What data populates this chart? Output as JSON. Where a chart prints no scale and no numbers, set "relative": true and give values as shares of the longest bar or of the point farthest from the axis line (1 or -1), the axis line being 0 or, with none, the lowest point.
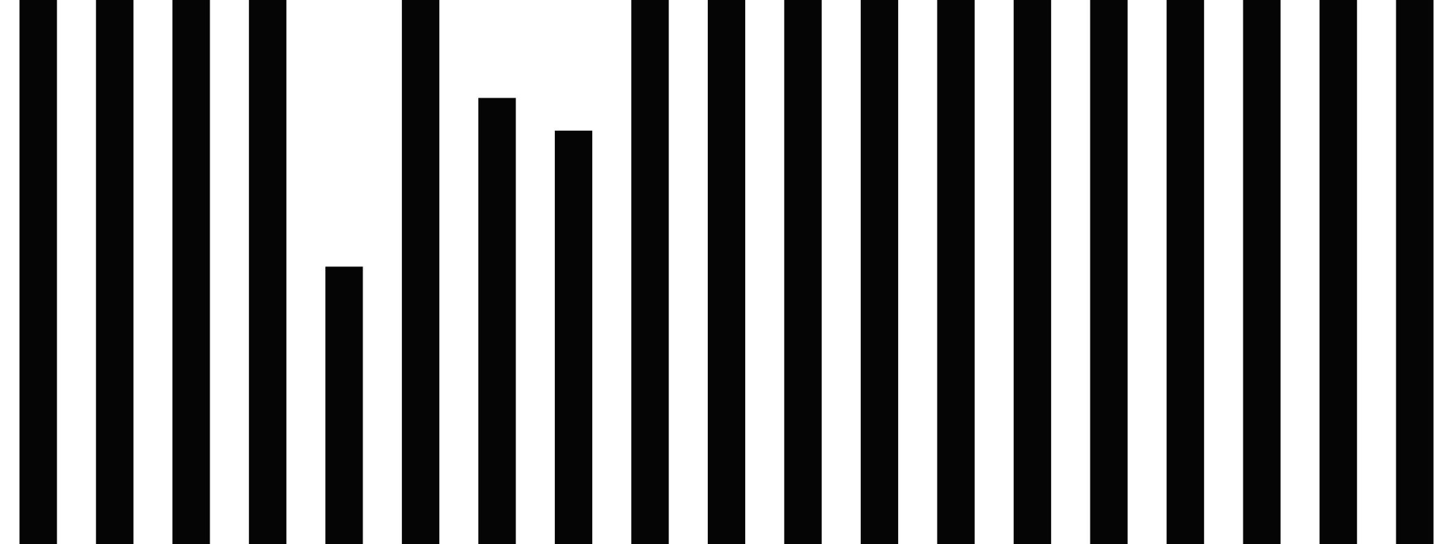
{
  "chart_data": {
    "type": "bar",
    "relative": true,
    "categories": [
      null,
      null,
      null,
      null,
      null,
      null,
      null,
      null,
      null,
      null,
      null,
      null,
      null,
      null,
      null,
      null,
      null,
      null,
      null
    ],
    "values": [
      1,
      1,
      1,
      1,
      0.51,
      1,
      0.82,
      0.76,
      1,
      1,
      1,
      1,
      1,
      1,
      1,
      1,
      1,
      1,
      1
    ],
    "color": "#050505",
    "grid": false,
    "legend": false
  }
}
